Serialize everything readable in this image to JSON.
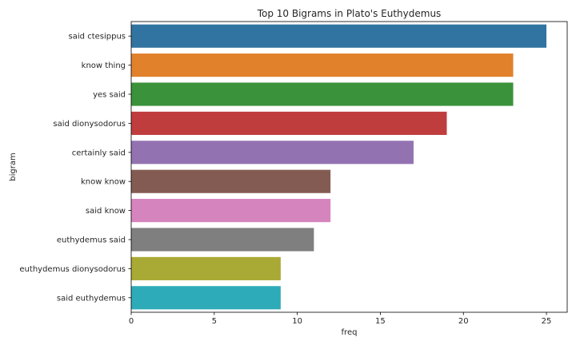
{
  "chart_data": {
    "type": "bar",
    "orientation": "horizontal",
    "title": "Top 10 Bigrams in Plato's Euthydemus",
    "xlabel": "freq",
    "ylabel": "bigram",
    "categories": [
      "said ctesippus",
      "know thing",
      "yes said",
      "said dionysodorus",
      "certainly said",
      "know know",
      "said know",
      "euthydemus said",
      "euthydemus dionysodorus",
      "said euthydemus"
    ],
    "values": [
      25,
      23,
      23,
      19,
      17,
      12,
      12,
      11,
      9,
      9
    ],
    "colors": [
      "#3274a1",
      "#e1812c",
      "#3a923a",
      "#c03d3e",
      "#9372b2",
      "#845b53",
      "#d684bd",
      "#7f7f7f",
      "#a9aa35",
      "#2eabb8"
    ],
    "xlim": [
      0,
      26.25
    ],
    "xticks": [
      0,
      5,
      10,
      15,
      20,
      25
    ],
    "grid": false,
    "legend": "none"
  }
}
